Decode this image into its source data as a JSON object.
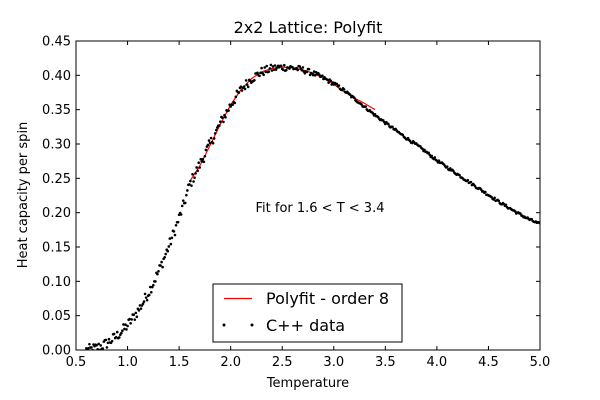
{
  "chart_data": {
    "type": "scatter",
    "title": "2x2 Lattice: Polyfit",
    "xlabel": "Temperature",
    "ylabel": "Heat capacity per spin",
    "xlim": [
      0.5,
      5.0
    ],
    "ylim": [
      0.0,
      0.45
    ],
    "xticks": [
      "0.5",
      "1.0",
      "1.5",
      "2.0",
      "2.5",
      "3.0",
      "3.5",
      "4.0",
      "4.5",
      "5.0"
    ],
    "yticks": [
      "0.00",
      "0.05",
      "0.10",
      "0.15",
      "0.20",
      "0.25",
      "0.30",
      "0.35",
      "0.40",
      "0.45"
    ],
    "annotation": "Fit for 1.6 < T < 3.4",
    "legend": [
      {
        "label": "Polyfit - order 8",
        "kind": "line",
        "color": "#ff0000"
      },
      {
        "label": "C++ data",
        "kind": "marker",
        "color": "#000000"
      }
    ],
    "series": [
      {
        "name": "Polyfit - order 8",
        "kind": "line",
        "color": "#ff0000",
        "x": [
          1.6,
          1.7,
          1.8,
          1.9,
          2.0,
          2.1,
          2.2,
          2.3,
          2.4,
          2.5,
          2.6,
          2.7,
          2.8,
          2.9,
          3.0,
          3.1,
          3.2,
          3.3,
          3.4
        ],
        "y": [
          0.245,
          0.268,
          0.298,
          0.329,
          0.357,
          0.379,
          0.395,
          0.405,
          0.41,
          0.412,
          0.411,
          0.408,
          0.403,
          0.396,
          0.387,
          0.376,
          0.367,
          0.359,
          0.35
        ]
      },
      {
        "name": "C++ data",
        "kind": "marker",
        "color": "#000000",
        "curve_x": [
          0.5,
          0.6,
          0.65,
          0.7,
          0.75,
          0.8,
          0.85,
          0.9,
          0.95,
          1.0,
          1.05,
          1.1,
          1.15,
          1.2,
          1.25,
          1.3,
          1.35,
          1.4,
          1.45,
          1.5,
          1.55,
          1.6,
          1.7,
          1.8,
          1.9,
          2.0,
          2.1,
          2.2,
          2.3,
          2.4,
          2.5,
          2.6,
          2.7,
          2.8,
          2.9,
          3.0,
          3.1,
          3.2,
          3.3,
          3.4,
          3.5,
          3.6,
          3.7,
          3.8,
          3.9,
          4.0,
          4.1,
          4.2,
          4.3,
          4.4,
          4.5,
          4.6,
          4.7,
          4.8,
          4.9,
          5.0
        ],
        "curve_y": [
          0.0,
          0.0,
          0.001,
          0.003,
          0.006,
          0.01,
          0.015,
          0.021,
          0.028,
          0.036,
          0.046,
          0.057,
          0.069,
          0.083,
          0.098,
          0.114,
          0.132,
          0.151,
          0.171,
          0.192,
          0.214,
          0.24,
          0.27,
          0.3,
          0.33,
          0.357,
          0.379,
          0.395,
          0.405,
          0.41,
          0.412,
          0.411,
          0.408,
          0.403,
          0.396,
          0.388,
          0.378,
          0.366,
          0.354,
          0.342,
          0.331,
          0.32,
          0.309,
          0.299,
          0.288,
          0.276,
          0.266,
          0.256,
          0.246,
          0.236,
          0.226,
          0.216,
          0.207,
          0.198,
          0.19,
          0.183
        ],
        "x_start": 0.6,
        "x_end": 5.0,
        "step": 0.01,
        "noise_low_T": 0.008,
        "noise_high_T": 0.002
      }
    ]
  }
}
